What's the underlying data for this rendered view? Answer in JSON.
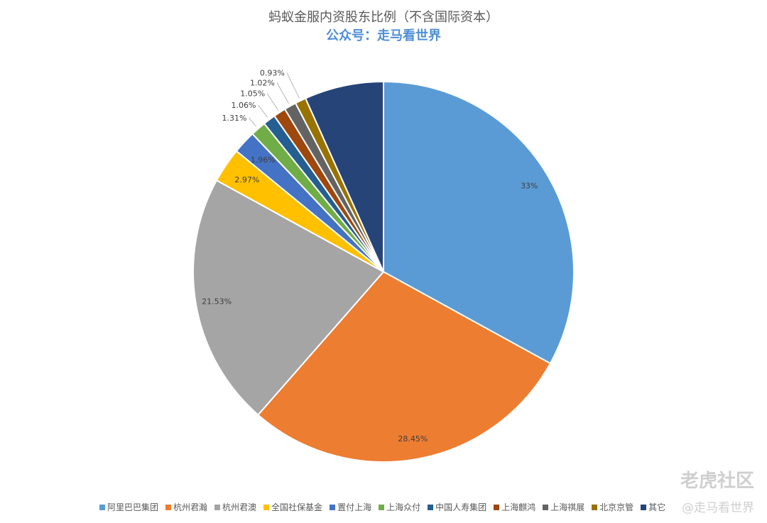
{
  "chart_data": {
    "type": "pie",
    "title": "蚂蚁金服内资股东比例（不含国际资本）",
    "subtitle": "公众号：走马看世界",
    "categories": [
      "阿里巴巴集团",
      "杭州君瀚",
      "杭州君澳",
      "全国社保基金",
      "置付上海",
      "上海众付",
      "中国人寿集团",
      "上海麒鸿",
      "上海祺展",
      "北京京管",
      "其它"
    ],
    "values": [
      33,
      28.45,
      21.53,
      2.97,
      1.96,
      1.31,
      1.06,
      1.05,
      1.02,
      0.93,
      6.72
    ],
    "labels": [
      "33%",
      "28.45%",
      "21.53%",
      "2.97%",
      "1.96%",
      "1.31%",
      "1.06%",
      "1.05%",
      "1.02%",
      "0.93%",
      ""
    ],
    "colors": [
      "#5b9bd5",
      "#ed7d31",
      "#a5a5a5",
      "#ffc000",
      "#4472c4",
      "#70ad47",
      "#255e91",
      "#9e480e",
      "#636363",
      "#997300",
      "#264478"
    ],
    "legend_position": "bottom"
  },
  "watermark": {
    "brand": "老虎社区",
    "handle": "@走马看世界"
  }
}
